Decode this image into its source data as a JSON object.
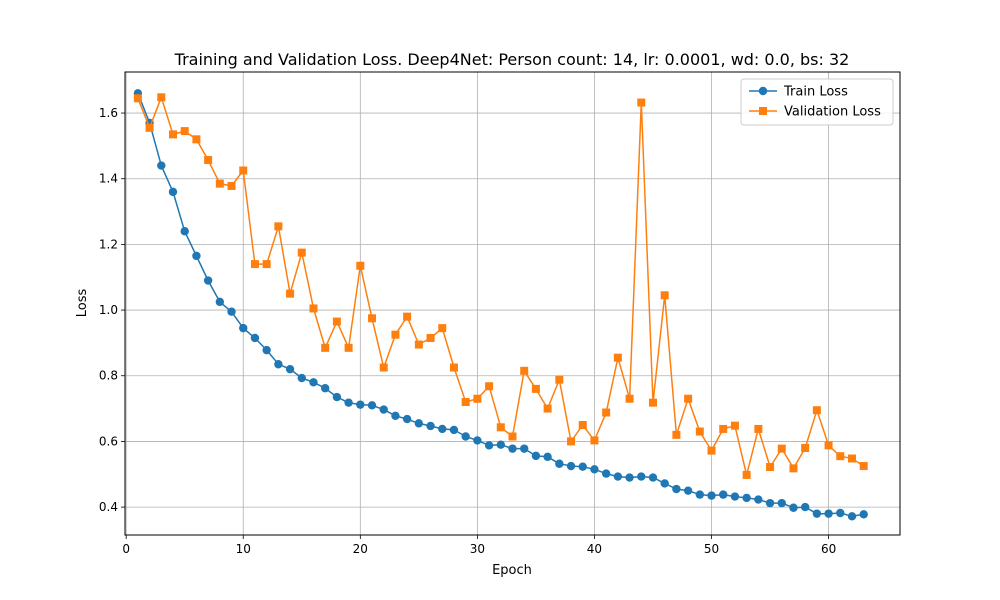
{
  "chart_data": {
    "type": "line",
    "title": "Training and Validation Loss. Deep4Net: Person count: 14, lr: 0.0001, wd: 0.0, bs: 32",
    "xlabel": "Epoch",
    "ylabel": "Loss",
    "xlim": [
      -0.1,
      66.1
    ],
    "ylim": [
      0.315,
      1.725
    ],
    "xticks": [
      0,
      10,
      20,
      30,
      40,
      50,
      60
    ],
    "yticks": [
      0.4,
      0.6,
      0.8,
      1.0,
      1.2,
      1.4,
      1.6
    ],
    "xtick_labels": [
      "0",
      "10",
      "20",
      "30",
      "40",
      "50",
      "60"
    ],
    "ytick_labels": [
      "0.4",
      "0.6",
      "0.8",
      "1.0",
      "1.2",
      "1.4",
      "1.6"
    ],
    "grid": true,
    "legend_position": "top-right",
    "x": [
      1,
      2,
      3,
      4,
      5,
      6,
      7,
      8,
      9,
      10,
      11,
      12,
      13,
      14,
      15,
      16,
      17,
      18,
      19,
      20,
      21,
      22,
      23,
      24,
      25,
      26,
      27,
      28,
      29,
      30,
      31,
      32,
      33,
      34,
      35,
      36,
      37,
      38,
      39,
      40,
      41,
      42,
      43,
      44,
      45,
      46,
      47,
      48,
      49,
      50,
      51,
      52,
      53,
      54,
      55,
      56,
      57,
      58,
      59,
      60,
      61,
      62,
      63
    ],
    "series": [
      {
        "name": "Train Loss",
        "color": "#1f77b4",
        "marker": "circle",
        "values": [
          1.66,
          1.57,
          1.44,
          1.36,
          1.24,
          1.165,
          1.09,
          1.025,
          0.995,
          0.945,
          0.915,
          0.878,
          0.835,
          0.82,
          0.793,
          0.78,
          0.762,
          0.735,
          0.718,
          0.712,
          0.71,
          0.697,
          0.678,
          0.668,
          0.655,
          0.647,
          0.638,
          0.635,
          0.615,
          0.603,
          0.588,
          0.59,
          0.578,
          0.578,
          0.556,
          0.553,
          0.532,
          0.525,
          0.523,
          0.515,
          0.502,
          0.493,
          0.49,
          0.493,
          0.49,
          0.472,
          0.455,
          0.45,
          0.438,
          0.435,
          0.438,
          0.432,
          0.428,
          0.423,
          0.412,
          0.412,
          0.398,
          0.4,
          0.38,
          0.38,
          0.382,
          0.372,
          0.378
        ]
      },
      {
        "name": "Validation Loss",
        "color": "#ff7f0e",
        "marker": "square",
        "values": [
          1.645,
          1.555,
          1.648,
          1.535,
          1.545,
          1.52,
          1.457,
          1.385,
          1.378,
          1.425,
          1.14,
          1.14,
          1.255,
          1.05,
          1.175,
          1.005,
          0.885,
          0.965,
          0.885,
          1.135,
          0.975,
          0.825,
          0.925,
          0.98,
          0.895,
          0.915,
          0.945,
          0.825,
          0.72,
          0.73,
          0.768,
          0.643,
          0.615,
          0.815,
          0.76,
          0.7,
          0.788,
          0.6,
          0.65,
          0.603,
          0.688,
          0.855,
          0.73,
          1.632,
          0.718,
          1.045,
          0.62,
          0.73,
          0.63,
          0.572,
          0.638,
          0.648,
          0.498,
          0.638,
          0.522,
          0.578,
          0.518,
          0.58,
          0.695,
          0.588,
          0.555,
          0.548,
          0.525
        ]
      }
    ]
  }
}
